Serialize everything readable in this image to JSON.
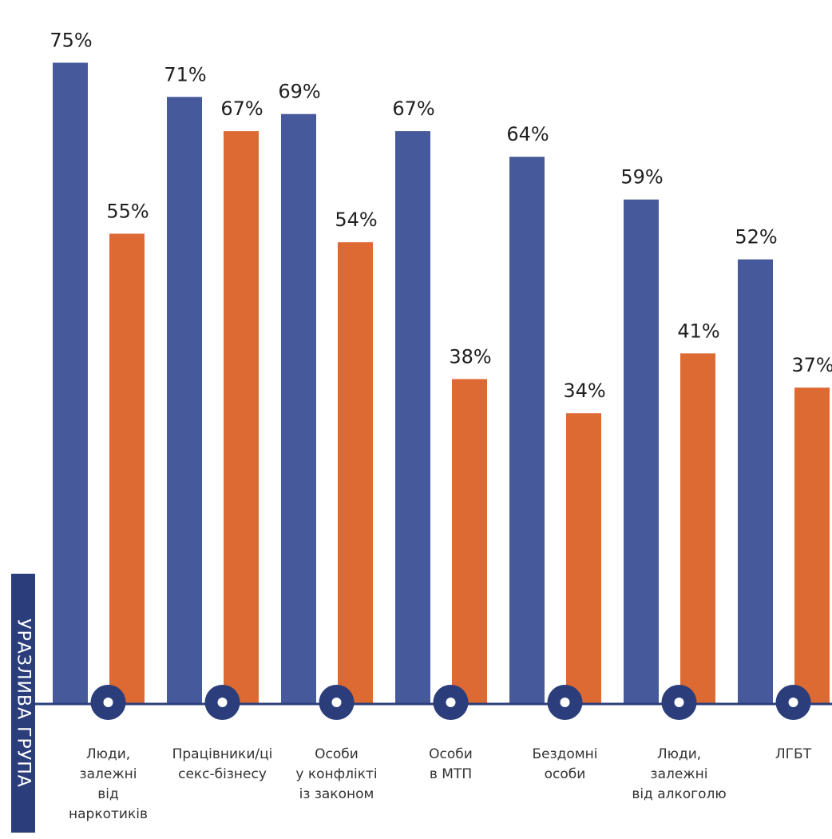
{
  "chart_data": {
    "type": "bar",
    "ylabel": "УРАЗЛИВА ГРУПА",
    "ylim": [
      0,
      80
    ],
    "grid": false,
    "legend": "none",
    "categories": [
      [
        "Люди,",
        "залежні",
        "від",
        "наркотиків"
      ],
      [
        "Працівники/ці",
        "секс-бізнесу"
      ],
      [
        "Особи",
        "у конфлікті",
        "із законом"
      ],
      [
        "Особи",
        "в МТП"
      ],
      [
        "Бездомні",
        "особи"
      ],
      [
        "Люди,",
        "залежні",
        "від алкоголю"
      ],
      [
        "ЛГБТ"
      ]
    ],
    "series": [
      {
        "values": [
          75,
          71,
          69,
          67,
          64,
          59,
          52
        ],
        "color": "#46599a"
      },
      {
        "values": [
          55,
          67,
          54,
          38,
          34,
          41,
          37
        ],
        "color": "#dd6933"
      }
    ],
    "value_labels": [
      [
        "75%",
        "71%",
        "69%",
        "67%",
        "64%",
        "59%",
        "52%"
      ],
      [
        "55%",
        "67%",
        "54%",
        "38%",
        "34%",
        "41%",
        "37%"
      ]
    ],
    "axis_color": "#2b3d7a",
    "marker_icon": "circle-dot-icon"
  }
}
